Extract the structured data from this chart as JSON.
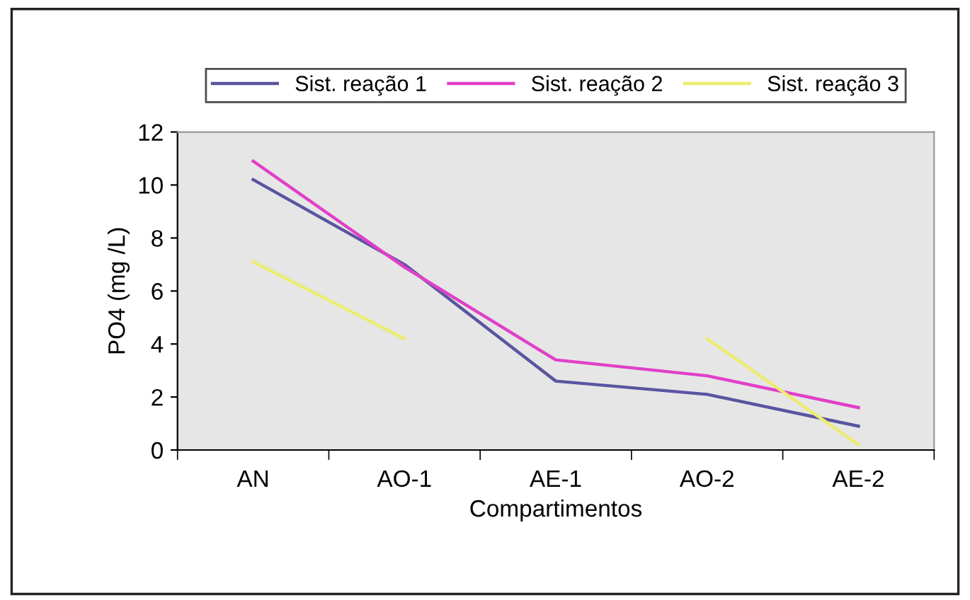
{
  "chart_data": {
    "type": "line",
    "xlabel": "Compartimentos",
    "ylabel": "PO4 (mg /L)",
    "categories": [
      "AN",
      "AO-1",
      "AE-1",
      "AO-2",
      "AE-2"
    ],
    "series": [
      {
        "name": "Sist. reação 1",
        "color": "#5a55a0",
        "values": [
          10.2,
          7.0,
          2.6,
          2.1,
          0.9
        ]
      },
      {
        "name": "Sist. reação 2",
        "color": "#e040c8",
        "values": [
          10.9,
          6.9,
          3.4,
          2.8,
          1.6
        ]
      },
      {
        "name": "Sist. reação 3",
        "color": "#ecec70",
        "values": [
          7.1,
          4.2,
          null,
          4.2,
          0.2
        ]
      }
    ],
    "ylim": [
      0,
      12
    ],
    "yticks": [
      0,
      2,
      4,
      6,
      8,
      10,
      12
    ],
    "legend": "top",
    "grid": false,
    "marker": "none",
    "line_style": "solid"
  }
}
